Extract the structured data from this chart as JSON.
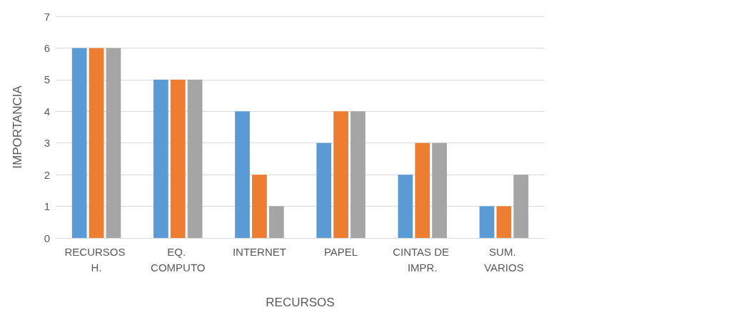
{
  "chart_data": {
    "type": "bar",
    "xlabel": "RECURSOS",
    "ylabel": "IMPORTANCIA",
    "categories": [
      "RECURSOS H.",
      "EQ. COMPUTO",
      "INTERNET",
      "PAPEL",
      "CINTAS DE IMPR.",
      "SUM. VARIOS"
    ],
    "series": [
      {
        "color": "#5b9bd5",
        "values": [
          6,
          5,
          4,
          3,
          2,
          1
        ]
      },
      {
        "color": "#ed7d31",
        "values": [
          6,
          5,
          2,
          4,
          3,
          1
        ]
      },
      {
        "color": "#a5a5a5",
        "values": [
          6,
          5,
          1,
          4,
          3,
          2
        ]
      }
    ],
    "ylim": [
      0,
      7
    ],
    "yticks": [
      0,
      1,
      2,
      3,
      4,
      5,
      6,
      7
    ],
    "grid": "y"
  }
}
